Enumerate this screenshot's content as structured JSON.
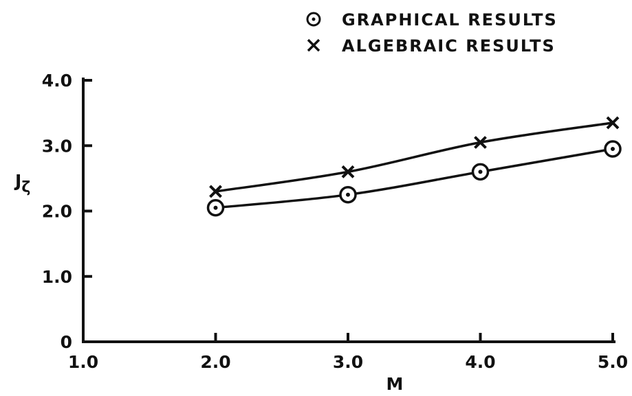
{
  "chart_data": {
    "type": "line",
    "xlabel": "M",
    "ylabel": "J",
    "ylabel_subscript": "ζ",
    "xlim": [
      1.0,
      5.0
    ],
    "ylim": [
      0,
      4.0
    ],
    "x_ticks": [
      "1.0",
      "2.0",
      "3.0",
      "4.0",
      "5.0"
    ],
    "y_ticks": [
      "0",
      "1.0",
      "2.0",
      "3.0",
      "4.0"
    ],
    "grid": false,
    "legend_position": "top-right",
    "series": [
      {
        "name": "GRAPHICAL RESULTS",
        "marker": "circled-dot",
        "x": [
          2.0,
          3.0,
          4.0,
          5.0
        ],
        "y": [
          2.05,
          2.25,
          2.6,
          2.95
        ]
      },
      {
        "name": "ALGEBRAIC RESULTS",
        "marker": "x",
        "x": [
          2.0,
          3.0,
          4.0,
          5.0
        ],
        "y": [
          2.3,
          2.6,
          3.05,
          3.35
        ]
      }
    ],
    "colors": {
      "ink": "#111111",
      "background": "#ffffff"
    }
  }
}
